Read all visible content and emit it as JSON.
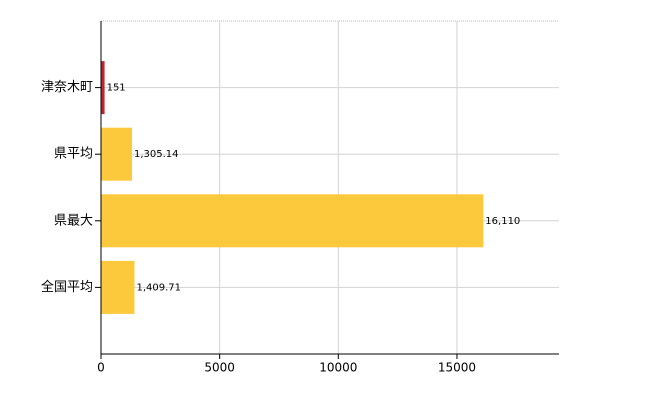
{
  "chart_data": {
    "type": "hbar",
    "categories": [
      "津奈木町",
      "県平均",
      "県最大",
      "全国平均"
    ],
    "values": [
      151,
      1305.14,
      16110,
      1409.71
    ],
    "value_labels": [
      "151",
      "1,305.14",
      "16,110",
      "1,409.71"
    ],
    "colors": [
      "#c0272d",
      "#fcc93d",
      "#fcc93d",
      "#fcc93d"
    ],
    "xlim": [
      0,
      19300
    ],
    "xticks": [
      0,
      5000,
      10000,
      15000
    ],
    "grid": true
  }
}
